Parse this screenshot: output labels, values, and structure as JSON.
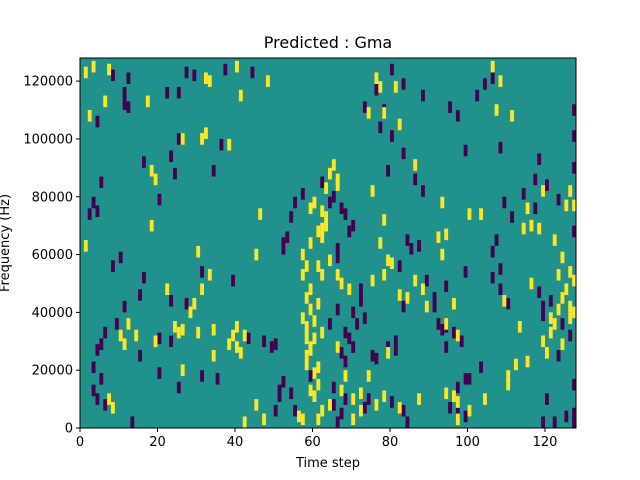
{
  "chart_data": {
    "type": "heatmap",
    "title": "Predicted : Gma",
    "xlabel": "Time step",
    "ylabel": "Frequency (Hz)",
    "xlim": [
      0,
      128
    ],
    "ylim": [
      0,
      128000
    ],
    "x_ticks": [
      0,
      20,
      40,
      60,
      80,
      100,
      120
    ],
    "y_ticks": [
      0,
      20000,
      40000,
      60000,
      80000,
      100000,
      120000
    ],
    "x_tick_labels": [
      "0",
      "20",
      "40",
      "60",
      "80",
      "100",
      "120"
    ],
    "y_tick_labels": [
      "0",
      "20000",
      "40000",
      "60000",
      "80000",
      "100000",
      "120000"
    ],
    "colormap": "viridis",
    "background_value": 0,
    "colors": {
      "low": "#440154",
      "background": "#21918c",
      "high": "#fde725"
    },
    "grid": false,
    "cells_high": [
      [
        1,
        125000
      ],
      [
        3,
        127000
      ],
      [
        7,
        126000
      ],
      [
        2,
        110000
      ],
      [
        6,
        115000
      ],
      [
        17,
        115000
      ],
      [
        32,
        123000
      ],
      [
        33,
        122000
      ],
      [
        40,
        127000
      ],
      [
        41,
        117000
      ],
      [
        48,
        122000
      ],
      [
        76,
        123000
      ],
      [
        77,
        120000
      ],
      [
        81,
        120000
      ],
      [
        74,
        111000
      ],
      [
        78,
        111000
      ],
      [
        82,
        107000
      ],
      [
        106,
        127000
      ],
      [
        108,
        122000
      ],
      [
        107,
        112000
      ],
      [
        111,
        110000
      ],
      [
        32,
        104000
      ],
      [
        31,
        102000
      ],
      [
        19,
        88000
      ],
      [
        18,
        91000
      ],
      [
        26,
        102000
      ],
      [
        38,
        100000
      ],
      [
        65,
        93000
      ],
      [
        64,
        90000
      ],
      [
        66,
        88000
      ],
      [
        66,
        86000
      ],
      [
        63,
        85000
      ],
      [
        60,
        80000
      ],
      [
        59,
        78000
      ],
      [
        75,
        84000
      ],
      [
        86,
        93000
      ],
      [
        93,
        80000
      ],
      [
        100,
        76000
      ],
      [
        103,
        76000
      ],
      [
        114,
        71000
      ],
      [
        115,
        78000
      ],
      [
        119,
        84000
      ],
      [
        125,
        79000
      ],
      [
        126,
        84000
      ],
      [
        116,
        72000
      ],
      [
        118,
        71000
      ],
      [
        128,
        79000
      ],
      [
        122,
        67000
      ],
      [
        124,
        61000
      ],
      [
        123,
        55000
      ],
      [
        126,
        56000
      ],
      [
        128,
        53000
      ],
      [
        125,
        50000
      ],
      [
        127,
        42000
      ],
      [
        126,
        40000
      ],
      [
        122,
        38000
      ],
      [
        121,
        35000
      ],
      [
        124,
        31000
      ],
      [
        119,
        32000
      ],
      [
        120,
        28000
      ],
      [
        113,
        37000
      ],
      [
        115,
        25000
      ],
      [
        112,
        24000
      ],
      [
        110,
        20000
      ],
      [
        110,
        17000
      ],
      [
        104,
        12000
      ],
      [
        97,
        11000
      ],
      [
        96,
        13000
      ],
      [
        100,
        8000
      ],
      [
        97,
        5000
      ],
      [
        78,
        13000
      ],
      [
        76,
        10000
      ],
      [
        82,
        9000
      ],
      [
        87,
        12000
      ],
      [
        94,
        14000
      ],
      [
        72,
        8000
      ],
      [
        70,
        5000
      ],
      [
        64,
        10000
      ],
      [
        62,
        8000
      ],
      [
        61,
        5000
      ],
      [
        60,
        13000
      ],
      [
        59,
        15000
      ],
      [
        61,
        17000
      ],
      [
        57,
        5000
      ],
      [
        56,
        6000
      ],
      [
        58,
        24000
      ],
      [
        58,
        27000
      ],
      [
        59,
        30000
      ],
      [
        58,
        33000
      ],
      [
        58,
        37000
      ],
      [
        57,
        40000
      ],
      [
        59,
        43000
      ],
      [
        58,
        47000
      ],
      [
        59,
        50000
      ],
      [
        57,
        55000
      ],
      [
        58,
        58000
      ],
      [
        57,
        62000
      ],
      [
        59,
        66000
      ],
      [
        62,
        68000
      ],
      [
        62,
        71000
      ],
      [
        63,
        72000
      ],
      [
        63,
        75000
      ],
      [
        61,
        70000
      ],
      [
        61,
        58000
      ],
      [
        62,
        55000
      ],
      [
        61,
        45000
      ],
      [
        60,
        39000
      ],
      [
        60,
        33000
      ],
      [
        59,
        29000
      ],
      [
        62,
        35000
      ],
      [
        66,
        30000
      ],
      [
        68,
        20000
      ],
      [
        60,
        21000
      ],
      [
        61,
        23000
      ],
      [
        67,
        15000
      ],
      [
        45,
        10000
      ],
      [
        47,
        5000
      ],
      [
        42,
        2000
      ],
      [
        41,
        28000
      ],
      [
        40,
        30000
      ],
      [
        42,
        34000
      ],
      [
        39,
        34000
      ],
      [
        40,
        37000
      ],
      [
        38,
        31000
      ],
      [
        30,
        35000
      ],
      [
        29,
        45000
      ],
      [
        34,
        27000
      ],
      [
        34,
        36000
      ],
      [
        28,
        42000
      ],
      [
        26,
        36000
      ],
      [
        25,
        35000
      ],
      [
        26,
        22000
      ],
      [
        24,
        37000
      ],
      [
        22,
        50000
      ],
      [
        19,
        32000
      ],
      [
        14,
        34000
      ],
      [
        12,
        38000
      ],
      [
        11,
        31000
      ],
      [
        10,
        34000
      ],
      [
        8,
        9000
      ],
      [
        7,
        12000
      ],
      [
        18,
        72000
      ],
      [
        1,
        65000
      ],
      [
        33,
        55000
      ],
      [
        30,
        63000
      ],
      [
        31,
        50000
      ],
      [
        45,
        62000
      ],
      [
        46,
        76000
      ],
      [
        75,
        53000
      ],
      [
        78,
        55000
      ],
      [
        79,
        60000
      ],
      [
        77,
        66000
      ],
      [
        80,
        59000
      ],
      [
        82,
        48000
      ],
      [
        84,
        47000
      ],
      [
        86,
        53000
      ],
      [
        88,
        50000
      ],
      [
        92,
        68000
      ],
      [
        93,
        62000
      ],
      [
        94,
        69000
      ],
      [
        89,
        44000
      ],
      [
        94,
        38000
      ],
      [
        97,
        34000
      ],
      [
        96,
        45000
      ],
      [
        109,
        46000
      ],
      [
        116,
        52000
      ],
      [
        124,
        47000
      ],
      [
        123,
        43000
      ],
      [
        121,
        40000
      ],
      [
        126,
        44000
      ],
      [
        79,
        28000
      ],
      [
        74,
        20000
      ],
      [
        72,
        14000
      ],
      [
        70,
        12000
      ],
      [
        66,
        55000
      ],
      [
        69,
        50000
      ],
      [
        67,
        52000
      ],
      [
        64,
        60000
      ],
      [
        62,
        77000
      ],
      [
        78,
        74000
      ]
    ],
    "cells_low": [
      [
        8,
        124000
      ],
      [
        12,
        123000
      ],
      [
        11,
        118000
      ],
      [
        22,
        118000
      ],
      [
        27,
        125000
      ],
      [
        29,
        124000
      ],
      [
        37,
        126000
      ],
      [
        44,
        125000
      ],
      [
        25,
        118000
      ],
      [
        4,
        108000
      ],
      [
        11,
        114000
      ],
      [
        12,
        113000
      ],
      [
        23,
        96000
      ],
      [
        25,
        102000
      ],
      [
        36,
        100000
      ],
      [
        16,
        94000
      ],
      [
        24,
        90000
      ],
      [
        34,
        91000
      ],
      [
        5,
        87000
      ],
      [
        3,
        80000
      ],
      [
        4,
        77000
      ],
      [
        20,
        81000
      ],
      [
        2,
        76000
      ],
      [
        10,
        61000
      ],
      [
        8,
        58000
      ],
      [
        16,
        54000
      ],
      [
        15,
        48000
      ],
      [
        11,
        44000
      ],
      [
        9,
        38000
      ],
      [
        6,
        35000
      ],
      [
        5,
        31000
      ],
      [
        4,
        29000
      ],
      [
        3,
        23000
      ],
      [
        5,
        19000
      ],
      [
        3,
        15000
      ],
      [
        4,
        12000
      ],
      [
        6,
        10000
      ],
      [
        13,
        3000
      ],
      [
        20,
        21000
      ],
      [
        15,
        27000
      ],
      [
        23,
        32000
      ],
      [
        20,
        33000
      ],
      [
        23,
        46000
      ],
      [
        27,
        45000
      ],
      [
        31,
        56000
      ],
      [
        39,
        53000
      ],
      [
        31,
        20000
      ],
      [
        25,
        16000
      ],
      [
        35,
        19000
      ],
      [
        43,
        33000
      ],
      [
        50,
        31000
      ],
      [
        47,
        32000
      ],
      [
        49,
        30000
      ],
      [
        55,
        8000
      ],
      [
        51,
        13000
      ],
      [
        52,
        18000
      ],
      [
        58,
        26000
      ],
      [
        59,
        20000
      ],
      [
        64,
        38000
      ],
      [
        66,
        43000
      ],
      [
        68,
        35000
      ],
      [
        69,
        33000
      ],
      [
        67,
        28000
      ],
      [
        68,
        25000
      ],
      [
        72,
        50000
      ],
      [
        73,
        40000
      ],
      [
        71,
        38000
      ],
      [
        70,
        42000
      ],
      [
        72,
        46000
      ],
      [
        75,
        27000
      ],
      [
        76,
        26000
      ],
      [
        79,
        30000
      ],
      [
        81,
        32000
      ],
      [
        81,
        29000
      ],
      [
        83,
        44000
      ],
      [
        82,
        58000
      ],
      [
        85,
        64000
      ],
      [
        87,
        65000
      ],
      [
        91,
        44000
      ],
      [
        91,
        47000
      ],
      [
        92,
        38000
      ],
      [
        93,
        36000
      ],
      [
        94,
        37000
      ],
      [
        89,
        53000
      ],
      [
        96,
        35000
      ],
      [
        98,
        32000
      ],
      [
        103,
        23000
      ],
      [
        97,
        16000
      ],
      [
        100,
        19000
      ],
      [
        99,
        19000
      ],
      [
        97,
        7000
      ],
      [
        99,
        6000
      ],
      [
        95,
        9000
      ],
      [
        83,
        8000
      ],
      [
        84,
        4000
      ],
      [
        80,
        11000
      ],
      [
        73,
        9000
      ],
      [
        74,
        12000
      ],
      [
        66,
        4000
      ],
      [
        67,
        7000
      ],
      [
        68,
        12000
      ],
      [
        65,
        10000
      ],
      [
        65,
        16000
      ],
      [
        70,
        30000
      ],
      [
        54,
        14000
      ],
      [
        51,
        15000
      ],
      [
        50,
        8000
      ],
      [
        55,
        80000
      ],
      [
        53,
        68000
      ],
      [
        52,
        66000
      ],
      [
        52,
        64000
      ],
      [
        54,
        75000
      ],
      [
        57,
        83000
      ],
      [
        62,
        87000
      ],
      [
        64,
        80000
      ],
      [
        65,
        82000
      ],
      [
        67,
        78000
      ],
      [
        68,
        76000
      ],
      [
        66,
        61000
      ],
      [
        66,
        64000
      ],
      [
        70,
        72000
      ],
      [
        69,
        70000
      ],
      [
        84,
        67000
      ],
      [
        86,
        88000
      ],
      [
        88,
        84000
      ],
      [
        79,
        91000
      ],
      [
        83,
        97000
      ],
      [
        80,
        103000
      ],
      [
        78,
        112000
      ],
      [
        83,
        121000
      ],
      [
        88,
        117000
      ],
      [
        77,
        106000
      ],
      [
        73,
        113000
      ],
      [
        76,
        119000
      ],
      [
        80,
        126000
      ],
      [
        95,
        113000
      ],
      [
        104,
        121000
      ],
      [
        106,
        123000
      ],
      [
        102,
        117000
      ],
      [
        97,
        110000
      ],
      [
        99,
        98000
      ],
      [
        108,
        99000
      ],
      [
        118,
        95000
      ],
      [
        117,
        88000
      ],
      [
        123,
        81000
      ],
      [
        128,
        92000
      ],
      [
        128,
        103000
      ],
      [
        128,
        112000
      ],
      [
        128,
        70000
      ],
      [
        120,
        86000
      ],
      [
        114,
        83000
      ],
      [
        117,
        78000
      ],
      [
        109,
        80000
      ],
      [
        111,
        75000
      ],
      [
        106,
        63000
      ],
      [
        107,
        67000
      ],
      [
        108,
        57000
      ],
      [
        108,
        50000
      ],
      [
        106,
        54000
      ],
      [
        110,
        45000
      ],
      [
        118,
        49000
      ],
      [
        119,
        44000
      ],
      [
        119,
        41000
      ],
      [
        121,
        46000
      ],
      [
        124,
        38000
      ],
      [
        126,
        34000
      ],
      [
        123,
        27000
      ],
      [
        127,
        17000
      ],
      [
        127,
        7000
      ],
      [
        125,
        6000
      ],
      [
        119,
        3000
      ],
      [
        122,
        1000
      ],
      [
        127,
        1000
      ],
      [
        120,
        12000
      ],
      [
        99,
        56000
      ],
      [
        94,
        51000
      ],
      [
        94,
        30000
      ]
    ]
  }
}
